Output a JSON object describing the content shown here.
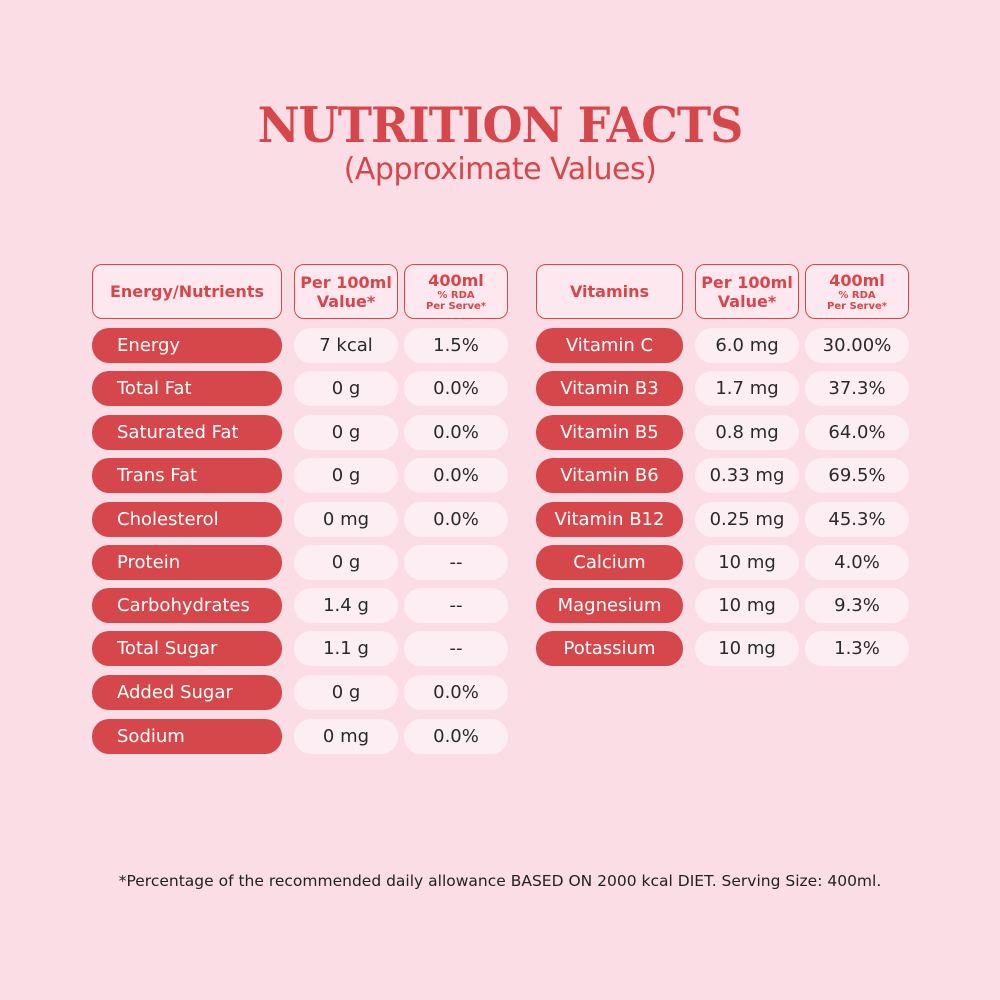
{
  "title": "NUTRITION FACTS",
  "subtitle": "(Approximate Values)",
  "colors": {
    "background": "#fbdde6",
    "accent": "#d6474b",
    "cell": "#fdeef3"
  },
  "left_table": {
    "headers": {
      "nutrient": "Energy/Nutrients",
      "per100_line1": "Per 100ml",
      "per100_line2": "Value*",
      "serve_line1": "400ml",
      "serve_line2": "% RDA",
      "serve_line3": "Per Serve*"
    },
    "rows": [
      {
        "name": "Energy",
        "per100": "7 kcal",
        "rda": "1.5%"
      },
      {
        "name": "Total Fat",
        "per100": "0 g",
        "rda": "0.0%"
      },
      {
        "name": "Saturated Fat",
        "per100": "0 g",
        "rda": "0.0%"
      },
      {
        "name": "Trans Fat",
        "per100": "0 g",
        "rda": "0.0%"
      },
      {
        "name": "Cholesterol",
        "per100": "0 mg",
        "rda": "0.0%"
      },
      {
        "name": "Protein",
        "per100": "0 g",
        "rda": "--"
      },
      {
        "name": "Carbohydrates",
        "per100": "1.4 g",
        "rda": "--"
      },
      {
        "name": "Total Sugar",
        "per100": "1.1 g",
        "rda": "--"
      },
      {
        "name": "Added Sugar",
        "per100": "0 g",
        "rda": "0.0%"
      },
      {
        "name": "Sodium",
        "per100": "0 mg",
        "rda": "0.0%"
      }
    ]
  },
  "right_table": {
    "headers": {
      "nutrient": "Vitamins",
      "per100_line1": "Per 100ml",
      "per100_line2": "Value*",
      "serve_line1": "400ml",
      "serve_line2": "% RDA",
      "serve_line3": "Per Serve*"
    },
    "rows": [
      {
        "name": "Vitamin C",
        "per100": "6.0 mg",
        "rda": "30.00%"
      },
      {
        "name": "Vitamin B3",
        "per100": "1.7 mg",
        "rda": "37.3%"
      },
      {
        "name": "Vitamin B5",
        "per100": "0.8 mg",
        "rda": "64.0%"
      },
      {
        "name": "Vitamin B6",
        "per100": "0.33 mg",
        "rda": "69.5%"
      },
      {
        "name": "Vitamin B12",
        "per100": "0.25 mg",
        "rda": "45.3%"
      },
      {
        "name": "Calcium",
        "per100": "10 mg",
        "rda": "4.0%"
      },
      {
        "name": "Magnesium",
        "per100": "10 mg",
        "rda": "9.3%"
      },
      {
        "name": "Potassium",
        "per100": "10 mg",
        "rda": "1.3%"
      }
    ]
  },
  "footnote": "*Percentage of the recommended daily allowance BASED ON 2000 kcal DIET. Serving Size: 400ml."
}
